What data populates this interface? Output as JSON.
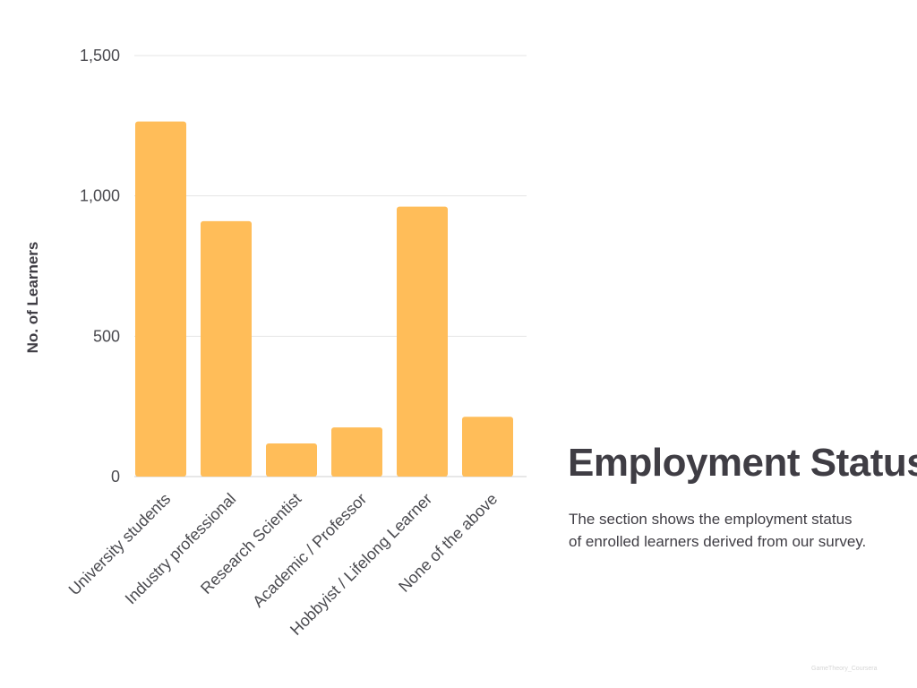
{
  "chart_data": {
    "type": "bar",
    "categories": [
      "University students",
      "Industry professional",
      "Research Scientist",
      "Academic / Professor",
      "Hobbyist / Lifelong Learner",
      "None of the above"
    ],
    "values": [
      1265,
      910,
      118,
      175,
      962,
      213
    ],
    "ylabel": "No. of Learners",
    "xlabel": "",
    "ylim": [
      0,
      1500
    ],
    "yticks": [
      0,
      500,
      1000,
      1500
    ],
    "ytick_labels": [
      "0",
      "500",
      "1,000",
      "1,500"
    ],
    "grid": true,
    "colors": {
      "bar": "#ffbd59",
      "text": "#3f3d44"
    }
  },
  "panel": {
    "title": "Employment Status",
    "description_line1": "The section shows the employment status",
    "description_line2": "of enrolled learners derived from our survey."
  },
  "watermark": "GameTheory_Coursera"
}
